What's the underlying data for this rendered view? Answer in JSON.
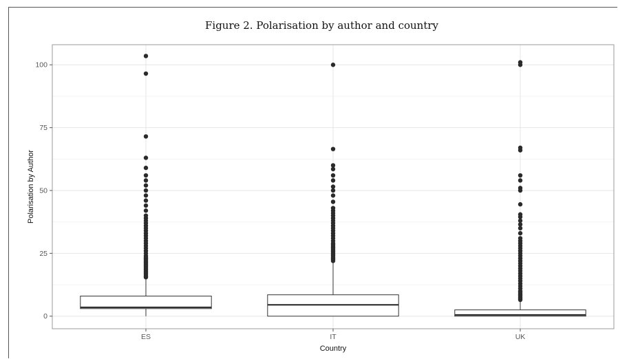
{
  "figure_title": "Figure 2. Polarisation by author and country",
  "chart_data": {
    "type": "box",
    "xlabel": "Country",
    "ylabel": "Polarisation by Author",
    "ylim": [
      -5,
      108
    ],
    "yticks": [
      0,
      25,
      50,
      75,
      100
    ],
    "grid": true,
    "categories": [
      "ES",
      "IT",
      "UK"
    ],
    "boxes": [
      {
        "category": "ES",
        "q1": 3,
        "median": 3.5,
        "q3": 8,
        "whisker_low": 0,
        "whisker_high": 15,
        "outliers": [
          15.5,
          16,
          16.5,
          17,
          17.5,
          18,
          18.5,
          19,
          19.5,
          20,
          20.5,
          21,
          21.5,
          22,
          22.5,
          23,
          23.5,
          24,
          25,
          26,
          27,
          28,
          29,
          30,
          31,
          32,
          33,
          34,
          35,
          36,
          37,
          38,
          39,
          40,
          42,
          44,
          46,
          48,
          50,
          52,
          54,
          56,
          59,
          63,
          71.5,
          96.5,
          103.5
        ]
      },
      {
        "category": "IT",
        "q1": 0,
        "median": 4.5,
        "q3": 8.5,
        "whisker_low": 0,
        "whisker_high": 21.5,
        "outliers": [
          22,
          22.5,
          23,
          23.5,
          24,
          24.5,
          25,
          25.5,
          26,
          26.5,
          27,
          27.5,
          28,
          28.5,
          29,
          30,
          31,
          32,
          33,
          34,
          35,
          36,
          37,
          38,
          39,
          40,
          41,
          42,
          43,
          45.5,
          48,
          50,
          51.5,
          54,
          56,
          58.5,
          60,
          66.5,
          100
        ]
      },
      {
        "category": "UK",
        "q1": 0,
        "median": 0.5,
        "q3": 2.5,
        "whisker_low": 0,
        "whisker_high": 6,
        "outliers": [
          6.5,
          7,
          7.5,
          8,
          8.5,
          9,
          9.5,
          10,
          11,
          12,
          13,
          14,
          15,
          16,
          17,
          18,
          19,
          20,
          21,
          22,
          23,
          24,
          25,
          26,
          27,
          28,
          29,
          30,
          31,
          33,
          35,
          36.5,
          38,
          39.5,
          40.5,
          44.5,
          50,
          51,
          54,
          56,
          66,
          67,
          100,
          101
        ]
      }
    ]
  }
}
